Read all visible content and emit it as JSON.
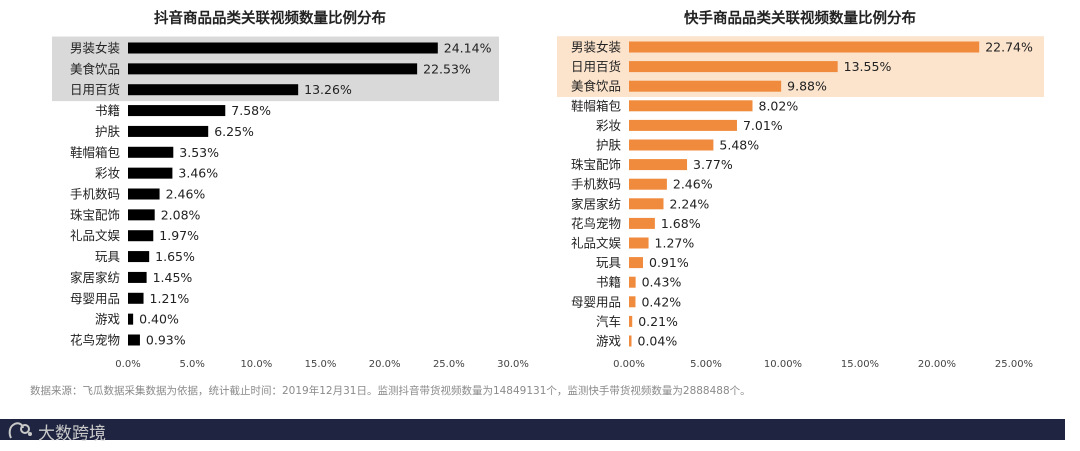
{
  "chart_data": [
    {
      "type": "bar",
      "orientation": "horizontal",
      "title": "抖音商品品类关联视频数量比例分布",
      "categories": [
        "男装女装",
        "美食饮品",
        "日用百货",
        "书籍",
        "护肤",
        "鞋帽箱包",
        "彩妆",
        "手机数码",
        "珠宝配饰",
        "礼品文娱",
        "玩具",
        "家居家纺",
        "母婴用品",
        "游戏",
        "花鸟宠物"
      ],
      "values": [
        24.14,
        22.53,
        13.26,
        7.58,
        6.25,
        3.53,
        3.46,
        2.46,
        2.08,
        1.97,
        1.65,
        1.45,
        1.21,
        0.4,
        0.93
      ],
      "value_labels": [
        "24.14%",
        "22.53%",
        "13.26%",
        "7.58%",
        "6.25%",
        "3.53%",
        "3.46%",
        "2.46%",
        "2.08%",
        "1.97%",
        "1.65%",
        "1.45%",
        "1.21%",
        "0.40%",
        "0.93%"
      ],
      "xticks": [
        0,
        5,
        10,
        15,
        20,
        25,
        30
      ],
      "xtick_labels": [
        "0.0%",
        "5.0%",
        "10.0%",
        "15.0%",
        "20.0%",
        "25.0%",
        "30.0%"
      ],
      "xlim": [
        0,
        30
      ],
      "highlighted_top": 3,
      "bar_color": "#000000",
      "highlight_color": "#d9d9d9"
    },
    {
      "type": "bar",
      "orientation": "horizontal",
      "title": "快手商品品类关联视频数量比例分布",
      "categories": [
        "男装女装",
        "日用百货",
        "美食饮品",
        "鞋帽箱包",
        "彩妆",
        "护肤",
        "珠宝配饰",
        "手机数码",
        "家居家纺",
        "花鸟宠物",
        "礼品文娱",
        "玩具",
        "书籍",
        "母婴用品",
        "汽车",
        "游戏"
      ],
      "values": [
        22.74,
        13.55,
        9.88,
        8.02,
        7.01,
        5.48,
        3.77,
        2.46,
        2.24,
        1.68,
        1.27,
        0.91,
        0.43,
        0.42,
        0.21,
        0.04
      ],
      "value_labels": [
        "22.74%",
        "13.55%",
        "9.88%",
        "8.02%",
        "7.01%",
        "5.48%",
        "3.77%",
        "2.46%",
        "2.24%",
        "1.68%",
        "1.27%",
        "0.91%",
        "0.43%",
        "0.42%",
        "0.21%",
        "0.04%"
      ],
      "xticks": [
        0,
        5,
        10,
        15,
        20,
        25
      ],
      "xtick_labels": [
        "0.00%",
        "5.00%",
        "10.00%",
        "15.00%",
        "20.00%",
        "25.00%"
      ],
      "xlim": [
        0,
        25
      ],
      "highlighted_top": 3,
      "bar_color": "#f08a3c",
      "highlight_color": "#fbe3cc"
    }
  ],
  "source_note": "数据来源：飞瓜数据采集数据为依据，统计截止时间：2019年12月31日。监测抖音带货视频数量为14849131个，监测快手带货视频数量为2888488个。",
  "brand": {
    "name": "大数跨境"
  },
  "colors": {
    "footer": "#1f2540",
    "text": "#222222"
  }
}
